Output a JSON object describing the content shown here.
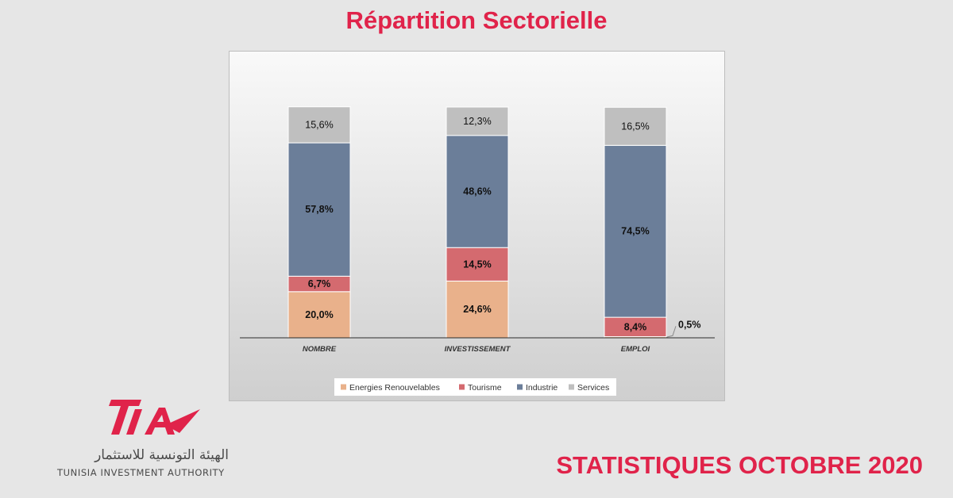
{
  "page": {
    "title": "Répartition Sectorielle",
    "footer_right": "STATISTIQUES OCTOBRE 2020",
    "logo": {
      "mark": "TIA",
      "arabic": "الهيئة التونسية للاستثمار",
      "english": "TUNISIA INVESTMENT AUTHORITY"
    }
  },
  "colors": {
    "brand": "#e0234a",
    "Energies Renouvelables": "#e9b18b",
    "Tourisme": "#d46a6f",
    "Industrie": "#6b7e99",
    "Services": "#bfbfbf"
  },
  "chart_data": {
    "type": "bar",
    "stacked": true,
    "title": "",
    "xlabel": "",
    "ylabel": "",
    "ylim": [
      0,
      100
    ],
    "grid": false,
    "legend_position": "bottom",
    "categories": [
      "NOMBRE",
      "INVESTISSEMENT",
      "EMPLOI"
    ],
    "series": [
      {
        "name": "Energies Renouvelables",
        "values": [
          20.0,
          24.6,
          0.5
        ],
        "labels": [
          "20,0%",
          "24,6%",
          "0,5%"
        ]
      },
      {
        "name": "Tourisme",
        "values": [
          6.7,
          14.5,
          8.4
        ],
        "labels": [
          "6,7%",
          "14,5%",
          "8,4%"
        ]
      },
      {
        "name": "Industrie",
        "values": [
          57.8,
          48.6,
          74.5
        ],
        "labels": [
          "57,8%",
          "48,6%",
          "74,5%"
        ]
      },
      {
        "name": "Services",
        "values": [
          15.6,
          12.3,
          16.5
        ],
        "labels": [
          "15,6%",
          "12,3%",
          "16,5%"
        ]
      }
    ]
  }
}
